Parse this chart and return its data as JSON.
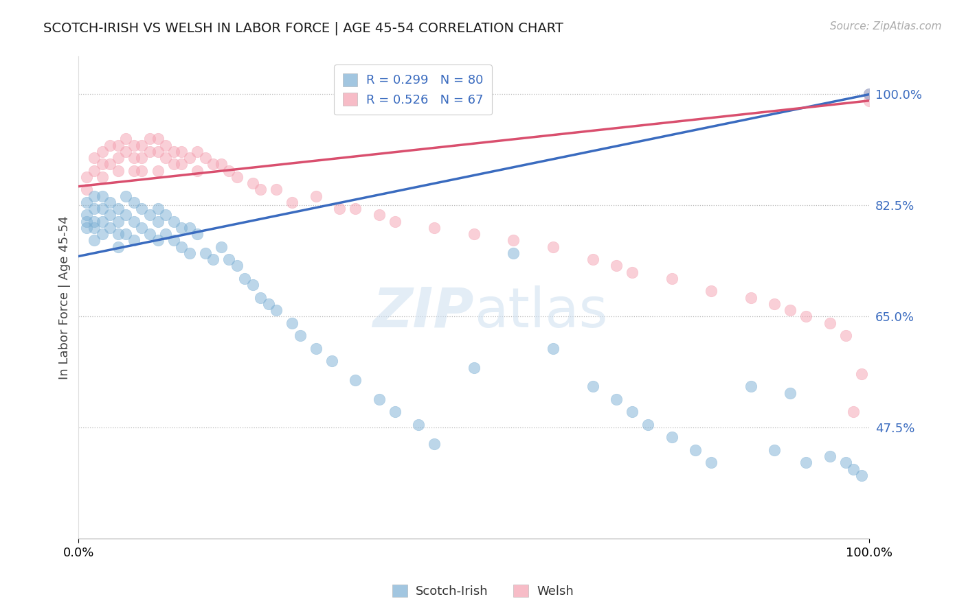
{
  "title": "SCOTCH-IRISH VS WELSH IN LABOR FORCE | AGE 45-54 CORRELATION CHART",
  "ylabel": "In Labor Force | Age 45-54",
  "source_text": "Source: ZipAtlas.com",
  "x_min": 0.0,
  "x_max": 1.0,
  "y_min": 0.3,
  "y_max": 1.06,
  "y_ticks": [
    0.475,
    0.65,
    0.825,
    1.0
  ],
  "y_tick_labels": [
    "47.5%",
    "65.0%",
    "82.5%",
    "100.0%"
  ],
  "x_ticks": [
    0.0,
    1.0
  ],
  "x_tick_labels": [
    "0.0%",
    "100.0%"
  ],
  "legend_blue_label": "R = 0.299   N = 80",
  "legend_pink_label": "R = 0.526   N = 67",
  "blue_color": "#7bafd4",
  "pink_color": "#f4a0b0",
  "blue_line_color": "#3a6bbf",
  "pink_line_color": "#d94f6e",
  "legend_text_color": "#3a6bbf",
  "watermark_color": "#cddff0",
  "bottom_legend_blue": "Scotch-Irish",
  "bottom_legend_pink": "Welsh",
  "blue_intercept": 0.745,
  "blue_slope": 0.255,
  "pink_intercept": 0.855,
  "pink_slope": 0.135,
  "scotch_irish_x": [
    0.01,
    0.01,
    0.01,
    0.01,
    0.02,
    0.02,
    0.02,
    0.02,
    0.02,
    0.03,
    0.03,
    0.03,
    0.03,
    0.04,
    0.04,
    0.04,
    0.05,
    0.05,
    0.05,
    0.05,
    0.06,
    0.06,
    0.06,
    0.07,
    0.07,
    0.07,
    0.08,
    0.08,
    0.09,
    0.09,
    0.1,
    0.1,
    0.1,
    0.11,
    0.11,
    0.12,
    0.12,
    0.13,
    0.13,
    0.14,
    0.14,
    0.15,
    0.16,
    0.17,
    0.18,
    0.19,
    0.2,
    0.21,
    0.22,
    0.23,
    0.24,
    0.25,
    0.27,
    0.28,
    0.3,
    0.32,
    0.35,
    0.38,
    0.4,
    0.43,
    0.45,
    0.5,
    0.55,
    0.6,
    0.65,
    0.68,
    0.7,
    0.72,
    0.75,
    0.78,
    0.8,
    0.85,
    0.88,
    0.9,
    0.92,
    0.95,
    0.97,
    0.98,
    0.99,
    1.0
  ],
  "scotch_irish_y": [
    0.83,
    0.81,
    0.8,
    0.79,
    0.84,
    0.82,
    0.8,
    0.79,
    0.77,
    0.84,
    0.82,
    0.8,
    0.78,
    0.83,
    0.81,
    0.79,
    0.82,
    0.8,
    0.78,
    0.76,
    0.84,
    0.81,
    0.78,
    0.83,
    0.8,
    0.77,
    0.82,
    0.79,
    0.81,
    0.78,
    0.82,
    0.8,
    0.77,
    0.81,
    0.78,
    0.8,
    0.77,
    0.79,
    0.76,
    0.79,
    0.75,
    0.78,
    0.75,
    0.74,
    0.76,
    0.74,
    0.73,
    0.71,
    0.7,
    0.68,
    0.67,
    0.66,
    0.64,
    0.62,
    0.6,
    0.58,
    0.55,
    0.52,
    0.5,
    0.48,
    0.45,
    0.57,
    0.75,
    0.6,
    0.54,
    0.52,
    0.5,
    0.48,
    0.46,
    0.44,
    0.42,
    0.54,
    0.44,
    0.53,
    0.42,
    0.43,
    0.42,
    0.41,
    0.4,
    1.0
  ],
  "welsh_x": [
    0.01,
    0.01,
    0.02,
    0.02,
    0.03,
    0.03,
    0.03,
    0.04,
    0.04,
    0.05,
    0.05,
    0.05,
    0.06,
    0.06,
    0.07,
    0.07,
    0.07,
    0.08,
    0.08,
    0.08,
    0.09,
    0.09,
    0.1,
    0.1,
    0.1,
    0.11,
    0.11,
    0.12,
    0.12,
    0.13,
    0.13,
    0.14,
    0.15,
    0.15,
    0.16,
    0.17,
    0.18,
    0.19,
    0.2,
    0.22,
    0.23,
    0.25,
    0.27,
    0.3,
    0.33,
    0.35,
    0.38,
    0.4,
    0.45,
    0.5,
    0.55,
    0.6,
    0.65,
    0.68,
    0.7,
    0.75,
    0.8,
    0.85,
    0.88,
    0.9,
    0.92,
    0.95,
    0.97,
    0.98,
    0.99,
    1.0,
    1.0
  ],
  "welsh_y": [
    0.87,
    0.85,
    0.9,
    0.88,
    0.91,
    0.89,
    0.87,
    0.92,
    0.89,
    0.92,
    0.9,
    0.88,
    0.93,
    0.91,
    0.92,
    0.9,
    0.88,
    0.92,
    0.9,
    0.88,
    0.93,
    0.91,
    0.93,
    0.91,
    0.88,
    0.92,
    0.9,
    0.91,
    0.89,
    0.91,
    0.89,
    0.9,
    0.91,
    0.88,
    0.9,
    0.89,
    0.89,
    0.88,
    0.87,
    0.86,
    0.85,
    0.85,
    0.83,
    0.84,
    0.82,
    0.82,
    0.81,
    0.8,
    0.79,
    0.78,
    0.77,
    0.76,
    0.74,
    0.73,
    0.72,
    0.71,
    0.69,
    0.68,
    0.67,
    0.66,
    0.65,
    0.64,
    0.62,
    0.5,
    0.56,
    0.99,
    1.0
  ]
}
